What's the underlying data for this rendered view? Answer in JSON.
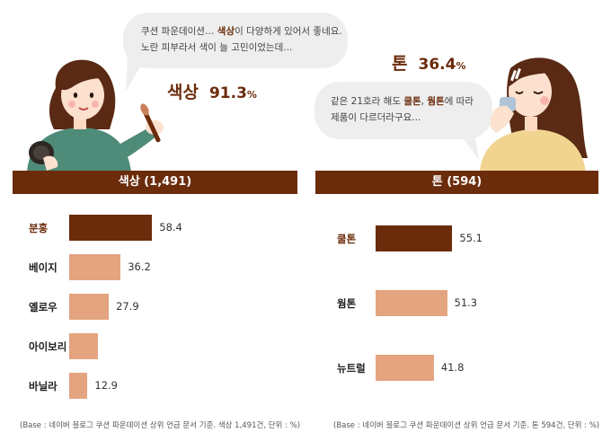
{
  "colors": {
    "dark": "#6b2c0c",
    "light": "#e3a47f",
    "bubble": "#eeeeee"
  },
  "left_quote": {
    "line1_pre": "쿠션 파운데이션… ",
    "line1_hl": "색상",
    "line1_post": "이 다양하게 있어서 좋네요.",
    "line2": "노란 피부라서 색이 늘 고민이었는데..."
  },
  "right_quote": {
    "line1_pre": "같은 21호라 해도 ",
    "line1_hl1": "쿨톤",
    "line1_sep": ", ",
    "line1_hl2": "웜톤",
    "line1_post": "에 따라",
    "line2": "제품이 다르더라구요..."
  },
  "left_stat": {
    "label": "색상",
    "value": "91.3",
    "unit": "%"
  },
  "right_stat": {
    "label": "톤",
    "value": "36.4",
    "unit": "%"
  },
  "chart_data": [
    {
      "type": "bar",
      "orientation": "horizontal",
      "title": "색상 (1,491)",
      "unit": "%",
      "categories": [
        "분홍",
        "베이지",
        "옐로우",
        "아이보리",
        "바닐라"
      ],
      "values": [
        58.4,
        36.2,
        27.9,
        20.2,
        12.9
      ],
      "value_labels": [
        "58.4",
        "36.2",
        "27.9",
        "",
        "12.9"
      ],
      "xlim": [
        0,
        100
      ],
      "footnote": "(Base : 네이버 블로그 쿠션 파운데이션 상위 언급 문서 기준. 색상 1,491건, 단위 : %)"
    },
    {
      "type": "bar",
      "orientation": "horizontal",
      "title": "톤 (594)",
      "unit": "%",
      "categories": [
        "쿨톤",
        "웜톤",
        "뉴트럴"
      ],
      "values": [
        55.1,
        51.3,
        41.8
      ],
      "value_labels": [
        "55.1",
        "51.3",
        "41.8"
      ],
      "xlim": [
        0,
        100
      ],
      "footnote": "(Base : 네이버 블로그 쿠션 파운데이션 상위 언급 문서 기준. 톤 594건, 단위 : %)"
    }
  ]
}
